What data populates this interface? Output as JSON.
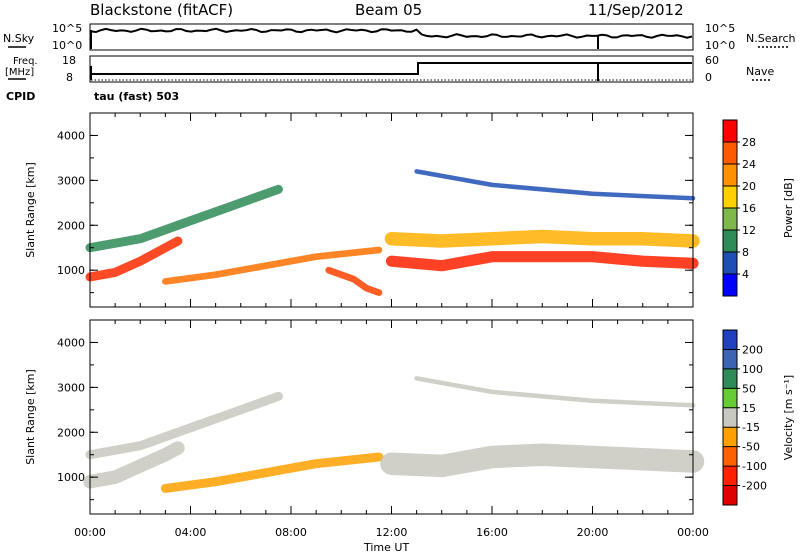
{
  "header": {
    "station": "Blackstone (fitACF)",
    "beam": "Beam 05",
    "date": "11/Sep/2012"
  },
  "top_panels": {
    "nsky_label": "N.Sky",
    "nsearch_label": "N.Search",
    "noise_ticks": [
      "10^5",
      "10^0"
    ],
    "noise_ticks_right": [
      "10^5",
      "10^0"
    ],
    "freq_label": "Freq.",
    "freq_unit": "[MHz]",
    "freq_ticks": [
      "18",
      "8"
    ],
    "nave_label": "Nave",
    "nave_ticks": [
      "60",
      "0"
    ],
    "cpid_label": "CPID",
    "cpid_value": "tau (fast) 503"
  },
  "power_colorbar": {
    "title": "Power [dB]",
    "ticks": [
      "28",
      "24",
      "20",
      "16",
      "12",
      "8",
      "4"
    ],
    "colors": [
      "#ff0000",
      "#ff5a00",
      "#ff9000",
      "#ffd000",
      "#7fb84a",
      "#2e8b57",
      "#1e50b4",
      "#0000ff"
    ]
  },
  "velocity_colorbar": {
    "title": "Velocity [m s⁻¹]",
    "ticks": [
      "200",
      "100",
      "50",
      "15",
      "-15",
      "-50",
      "-100",
      "-200"
    ],
    "colors": [
      "#2040c0",
      "#3c64b4",
      "#2e8b57",
      "#66cc33",
      "#c8c8c0",
      "#ffa000",
      "#ff6000",
      "#ff2000",
      "#e00000"
    ]
  },
  "chart_data": [
    {
      "type": "heatmap",
      "panel": "power",
      "ylabel": "Slant Range [km]",
      "y_ticks": [
        "1000",
        "2000",
        "3000",
        "4000"
      ],
      "ylim": [
        180,
        4500
      ],
      "xlim": [
        0,
        24
      ],
      "x_ticks": [
        "00:00",
        "04:00",
        "08:00",
        "12:00",
        "16:00",
        "20:00",
        "00:00"
      ],
      "bands": [
        {
          "t": [
            0.0,
            1.0,
            2.0,
            3.0,
            3.5
          ],
          "r": [
            850,
            950,
            1200,
            1500,
            1650
          ],
          "w": 200,
          "color": "#ff2a00"
        },
        {
          "t": [
            0.0,
            2.0,
            4.0,
            6.0,
            7.5
          ],
          "r": [
            1500,
            1700,
            2100,
            2500,
            2800
          ],
          "w": 200,
          "color": "#2e8b57"
        },
        {
          "t": [
            3.0,
            5.0,
            7.0,
            9.0,
            11.5
          ],
          "r": [
            750,
            900,
            1100,
            1300,
            1450
          ],
          "w": 150,
          "color": "#ff7000"
        },
        {
          "t": [
            9.5,
            10.5,
            11.0,
            11.5
          ],
          "r": [
            1000,
            800,
            600,
            500
          ],
          "w": 150,
          "color": "#ff4000"
        },
        {
          "t": [
            12.0,
            14.0,
            16.0,
            18.0,
            20.0,
            22.0,
            24.0
          ],
          "r": [
            1200,
            1100,
            1300,
            1300,
            1300,
            1200,
            1150
          ],
          "w": 250,
          "color": "#ff2000"
        },
        {
          "t": [
            12.0,
            14.0,
            16.0,
            18.0,
            20.0,
            22.0,
            24.0
          ],
          "r": [
            1700,
            1650,
            1700,
            1750,
            1700,
            1700,
            1650
          ],
          "w": 300,
          "color": "#ffb000"
        },
        {
          "t": [
            13.0,
            16.0,
            20.0,
            24.0
          ],
          "r": [
            3200,
            2900,
            2700,
            2600
          ],
          "w": 100,
          "color": "#1e50b4"
        }
      ]
    },
    {
      "type": "heatmap",
      "panel": "velocity",
      "ylabel": "Slant Range [km]",
      "xlabel": "Time UT",
      "y_ticks": [
        "1000",
        "2000",
        "3000",
        "4000"
      ],
      "ylim": [
        180,
        4500
      ],
      "xlim": [
        0,
        24
      ],
      "x_ticks": [
        "00:00",
        "04:00",
        "08:00",
        "12:00",
        "16:00",
        "20:00",
        "00:00"
      ],
      "bands": [
        {
          "t": [
            0.0,
            1.0,
            2.0,
            3.0,
            3.5
          ],
          "r": [
            900,
            1000,
            1250,
            1500,
            1650
          ],
          "w": 300,
          "color": "#c8c8c0"
        },
        {
          "t": [
            0.0,
            2.0,
            4.0,
            6.0,
            7.5
          ],
          "r": [
            1500,
            1700,
            2100,
            2500,
            2800
          ],
          "w": 200,
          "color": "#c8c8c0"
        },
        {
          "t": [
            3.0,
            5.0,
            7.0,
            9.0,
            11.5
          ],
          "r": [
            750,
            900,
            1100,
            1300,
            1450
          ],
          "w": 200,
          "color": "#ffa000"
        },
        {
          "t": [
            12.0,
            14.0,
            16.0,
            18.0,
            20.0,
            22.0,
            24.0
          ],
          "r": [
            1300,
            1250,
            1450,
            1500,
            1450,
            1400,
            1350
          ],
          "w": 500,
          "color": "#c8c8c0"
        },
        {
          "t": [
            13.0,
            16.0,
            20.0,
            24.0
          ],
          "r": [
            3200,
            2900,
            2700,
            2600
          ],
          "w": 100,
          "color": "#c8c8c0"
        }
      ]
    }
  ]
}
